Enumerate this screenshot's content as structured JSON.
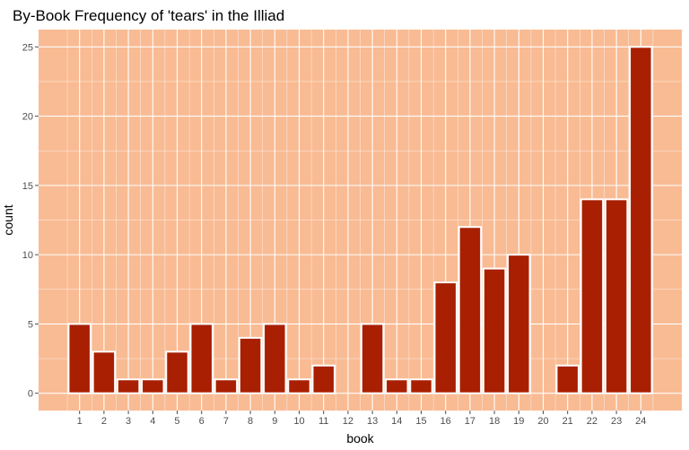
{
  "chart_data": {
    "type": "bar",
    "title": "By-Book Frequency of 'tears' in the Illiad",
    "xlabel": "book",
    "ylabel": "count",
    "categories": [
      "1",
      "2",
      "3",
      "4",
      "5",
      "6",
      "7",
      "8",
      "9",
      "10",
      "11",
      "12",
      "13",
      "14",
      "15",
      "16",
      "17",
      "18",
      "19",
      "20",
      "21",
      "22",
      "23",
      "24"
    ],
    "values": [
      5,
      3,
      1,
      1,
      3,
      5,
      1,
      4,
      5,
      1,
      2,
      0,
      5,
      1,
      1,
      8,
      12,
      9,
      10,
      0,
      2,
      14,
      14,
      25
    ],
    "yticks": [
      0,
      5,
      10,
      15,
      20,
      25
    ],
    "ylim": [
      -1.25,
      26.25
    ],
    "grid": true,
    "colors": {
      "panel_background": "#f9bb93",
      "gridline": "#ffffff",
      "bar_fill": "#a91f02",
      "bar_outline": "#ffffff"
    }
  }
}
